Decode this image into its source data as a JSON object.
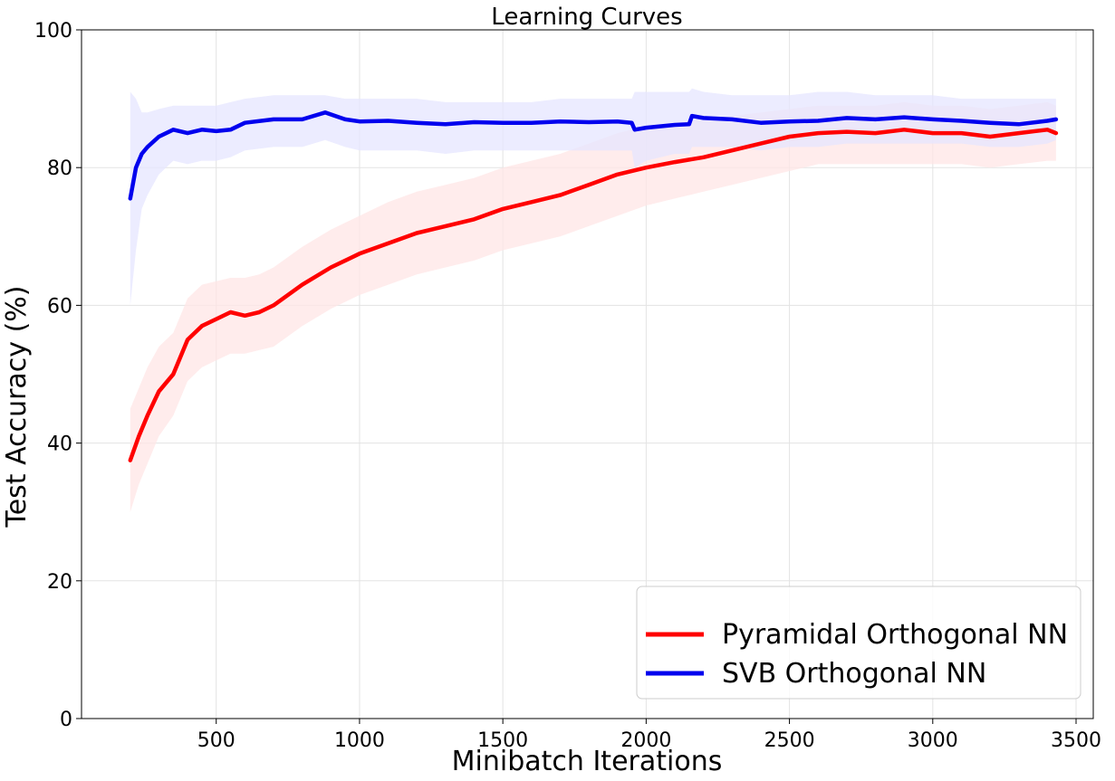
{
  "chart_data": {
    "type": "line",
    "title": "Learning Curves",
    "xlabel": "Minibatch Iterations",
    "ylabel": "Test  Accuracy (%)",
    "xlim": [
      30,
      3560
    ],
    "ylim": [
      0,
      100
    ],
    "xticks": [
      500,
      1000,
      1500,
      2000,
      2500,
      3000,
      3500
    ],
    "yticks": [
      0,
      20,
      40,
      60,
      80,
      100
    ],
    "grid": true,
    "legend_position": "lower-right",
    "series": [
      {
        "name": "Pyramidal Orthogonal NN",
        "color": "#ff0000",
        "band_color": "#ffe6e6",
        "x": [
          200,
          230,
          260,
          300,
          350,
          400,
          450,
          500,
          550,
          600,
          650,
          700,
          800,
          900,
          1000,
          1100,
          1200,
          1300,
          1400,
          1500,
          1600,
          1700,
          1800,
          1900,
          2000,
          2100,
          2200,
          2300,
          2400,
          2500,
          2600,
          2700,
          2800,
          2900,
          3000,
          3100,
          3200,
          3300,
          3400,
          3430
        ],
        "y": [
          37.5,
          41,
          44,
          47.5,
          50,
          55,
          57,
          58,
          59,
          58.5,
          59,
          60,
          63,
          65.5,
          67.5,
          69,
          70.5,
          71.5,
          72.5,
          74,
          75,
          76,
          77.5,
          79,
          80,
          80.8,
          81.5,
          82.5,
          83.5,
          84.5,
          85,
          85.2,
          85,
          85.5,
          85,
          85,
          84.5,
          85,
          85.5,
          85
        ],
        "lower": [
          30,
          34,
          37,
          41,
          44,
          49,
          51,
          52,
          53,
          53,
          53.5,
          54,
          57,
          59.5,
          61.5,
          63,
          64.5,
          65.5,
          66.5,
          68,
          69,
          70,
          71.5,
          73,
          74.5,
          75.5,
          76.5,
          77.5,
          78.5,
          79.5,
          80.5,
          80.5,
          80.5,
          80.5,
          80.5,
          80.5,
          80,
          80.5,
          81,
          81
        ],
        "upper": [
          45,
          48,
          51,
          54,
          56,
          61,
          63,
          63.5,
          64,
          64,
          64.5,
          65.5,
          68.5,
          71,
          73,
          75,
          76.5,
          77.5,
          78.5,
          80,
          81,
          82,
          83.5,
          85,
          86,
          86.5,
          87,
          87.5,
          88,
          88.5,
          89,
          89,
          89,
          89.5,
          89,
          89,
          88.5,
          89,
          89.5,
          89
        ]
      },
      {
        "name": "SVB Orthogonal NN",
        "color": "#0000ee",
        "band_color": "#e6e6ff",
        "x": [
          200,
          220,
          240,
          260,
          300,
          350,
          400,
          450,
          500,
          550,
          600,
          700,
          800,
          880,
          950,
          1000,
          1100,
          1200,
          1300,
          1400,
          1500,
          1600,
          1700,
          1800,
          1900,
          1950,
          1960,
          2000,
          2100,
          2150,
          2160,
          2200,
          2300,
          2400,
          2500,
          2600,
          2700,
          2800,
          2900,
          3000,
          3100,
          3200,
          3300,
          3400,
          3430
        ],
        "y": [
          75.5,
          80,
          82,
          83,
          84.5,
          85.5,
          85,
          85.5,
          85.3,
          85.5,
          86.5,
          87,
          87,
          88,
          87,
          86.7,
          86.8,
          86.5,
          86.3,
          86.6,
          86.5,
          86.5,
          86.7,
          86.6,
          86.7,
          86.5,
          85.5,
          85.8,
          86.2,
          86.3,
          87.5,
          87.2,
          87,
          86.5,
          86.7,
          86.8,
          87.2,
          87,
          87.3,
          87,
          86.8,
          86.5,
          86.3,
          86.8,
          87
        ],
        "lower": [
          60,
          68,
          74,
          76,
          79,
          81,
          80.5,
          81,
          81,
          81.5,
          82.5,
          83,
          83,
          84,
          83,
          82.5,
          82.5,
          82.5,
          82,
          82.5,
          82.5,
          82.5,
          82.5,
          82.5,
          82.5,
          82.5,
          80,
          81,
          82,
          82,
          83,
          83,
          83,
          82.5,
          83,
          83,
          83.5,
          83.5,
          83.5,
          83.5,
          83.5,
          83,
          83,
          83.5,
          84
        ],
        "upper": [
          91,
          90,
          88,
          88,
          88.5,
          89,
          89,
          89,
          89,
          89.5,
          90,
          90.5,
          90.5,
          90.5,
          90,
          90,
          90,
          90,
          89.5,
          89.5,
          89.5,
          89.5,
          90,
          90,
          90,
          90,
          91,
          91,
          91,
          91,
          91.5,
          91,
          90.5,
          90.5,
          90.5,
          91,
          91,
          90.5,
          90.5,
          90.5,
          90,
          90,
          90,
          90,
          90
        ]
      }
    ]
  }
}
